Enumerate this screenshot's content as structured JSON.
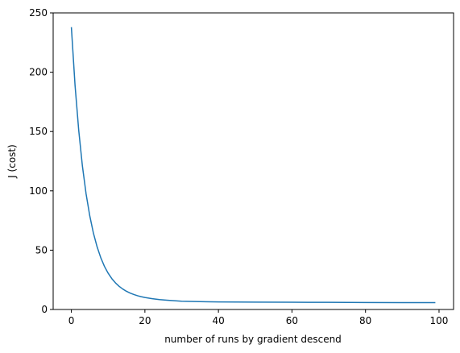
{
  "chart_data": {
    "type": "line",
    "title": "",
    "xlabel": "number of runs by gradient descend",
    "ylabel": "J (cost)",
    "xlim": [
      -4.95,
      103.95
    ],
    "ylim": [
      0,
      250
    ],
    "xticks": [
      0,
      20,
      40,
      60,
      80,
      100
    ],
    "yticks": [
      0,
      50,
      100,
      150,
      200,
      250
    ],
    "grid": false,
    "legend": "none",
    "series": [
      {
        "color": "#1f77b4",
        "x": [
          0,
          1,
          2,
          3,
          4,
          5,
          6,
          7,
          8,
          9,
          10,
          11,
          12,
          13,
          14,
          15,
          16,
          17,
          18,
          19,
          20,
          22,
          24,
          26,
          28,
          30,
          35,
          40,
          45,
          50,
          60,
          70,
          80,
          90,
          99
        ],
        "y": [
          238.0,
          189.0,
          151.0,
          121.0,
          97.5,
          79.0,
          64.3,
          52.8,
          43.6,
          36.3,
          30.6,
          26.0,
          22.4,
          19.5,
          17.2,
          15.3,
          13.8,
          12.6,
          11.6,
          10.8,
          10.1,
          9.1,
          8.3,
          7.8,
          7.4,
          7.0,
          6.6,
          6.4,
          6.3,
          6.2,
          6.1,
          6.0,
          5.9,
          5.8,
          5.8
        ]
      }
    ]
  }
}
